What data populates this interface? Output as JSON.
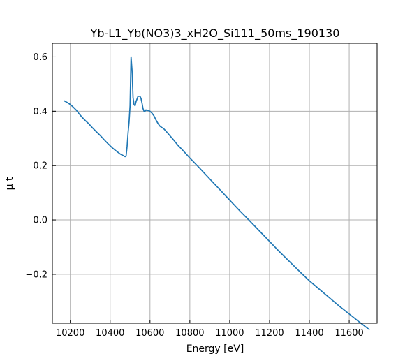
{
  "chart_data": {
    "type": "line",
    "title": "Yb-L1_Yb(NO3)3_xH2O_Si111_50ms_190130",
    "xlabel": "Energy [eV]",
    "ylabel": "μ t",
    "xlim": [
      10110,
      11740
    ],
    "ylim": [
      -0.38,
      0.65
    ],
    "xticks": [
      10200,
      10400,
      10600,
      10800,
      11000,
      11200,
      11400,
      11600
    ],
    "yticks": [
      -0.2,
      0.0,
      0.2,
      0.4,
      0.6
    ],
    "xtick_labels": [
      "10200",
      "10400",
      "10600",
      "10800",
      "11000",
      "11200",
      "11400",
      "11600"
    ],
    "ytick_labels": [
      "−0.2",
      "0.0",
      "0.2",
      "0.4",
      "0.6"
    ],
    "grid": true,
    "line_color": "#1f77b4",
    "series": [
      {
        "x": [
          10170,
          10185,
          10200,
          10215,
          10230,
          10245,
          10260,
          10275,
          10290,
          10310,
          10330,
          10350,
          10370,
          10390,
          10410,
          10430,
          10450,
          10465,
          10475,
          10480,
          10485,
          10490,
          10495,
          10500,
          10505,
          10510,
          10515,
          10520,
          10525,
          10530,
          10540,
          10550,
          10555,
          10560,
          10565,
          10570,
          10575,
          10580,
          10585,
          10590,
          10600,
          10610,
          10620,
          10630,
          10640,
          10650,
          10660,
          10670,
          10680,
          10700,
          10720,
          10740,
          10760,
          10780,
          10800,
          10850,
          10900,
          10950,
          11000,
          11050,
          11100,
          11150,
          11200,
          11250,
          11300,
          11350,
          11400,
          11450,
          11500,
          11550,
          11600,
          11650,
          11700
        ],
        "y": [
          0.438,
          0.432,
          0.425,
          0.415,
          0.404,
          0.39,
          0.377,
          0.366,
          0.356,
          0.34,
          0.325,
          0.311,
          0.295,
          0.28,
          0.266,
          0.254,
          0.243,
          0.237,
          0.233,
          0.235,
          0.27,
          0.32,
          0.36,
          0.42,
          0.6,
          0.55,
          0.45,
          0.425,
          0.42,
          0.435,
          0.455,
          0.455,
          0.447,
          0.43,
          0.41,
          0.4,
          0.4,
          0.405,
          0.402,
          0.403,
          0.4,
          0.393,
          0.383,
          0.368,
          0.355,
          0.345,
          0.34,
          0.335,
          0.327,
          0.31,
          0.293,
          0.275,
          0.26,
          0.244,
          0.228,
          0.19,
          0.151,
          0.112,
          0.073,
          0.034,
          -0.003,
          -0.041,
          -0.079,
          -0.117,
          -0.153,
          -0.189,
          -0.224,
          -0.255,
          -0.286,
          -0.317,
          -0.346,
          -0.375,
          -0.403
        ]
      }
    ]
  }
}
